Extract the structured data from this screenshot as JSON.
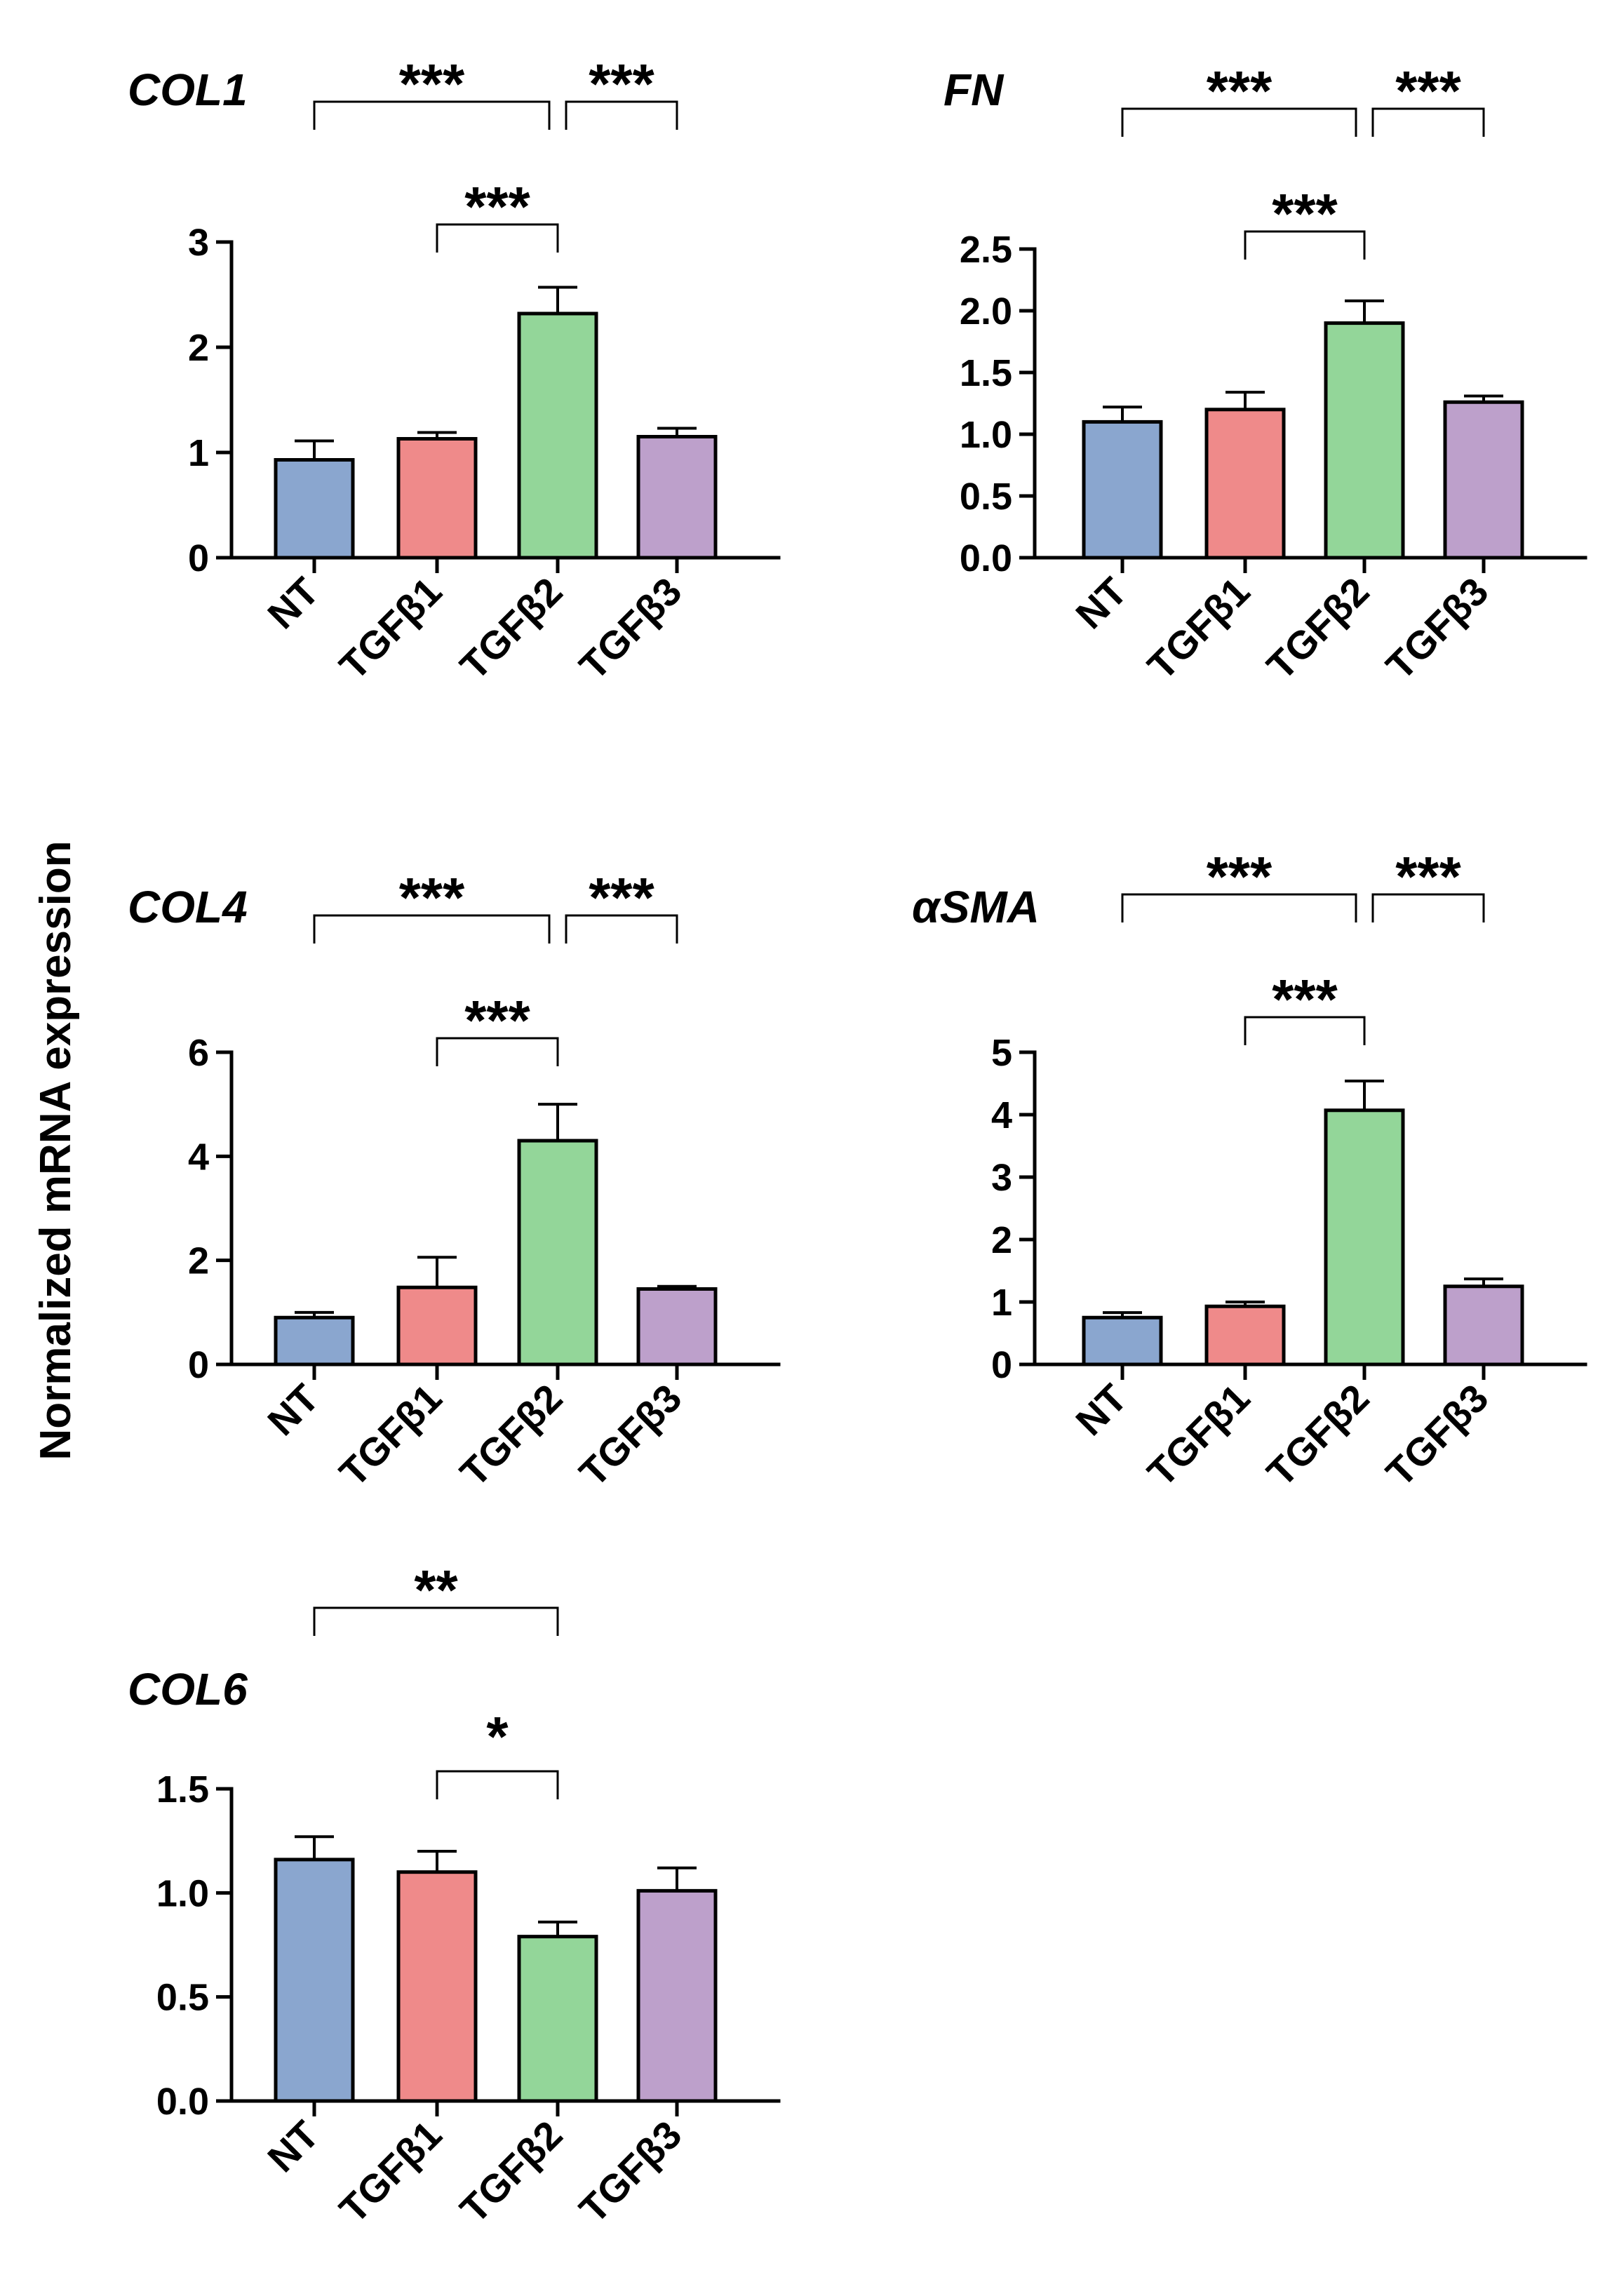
{
  "figure": {
    "ylabel": "Normalized mRNA expression"
  },
  "chart_data": [
    {
      "type": "bar",
      "title": "COL1",
      "categories": [
        "NT",
        "TGFβ1",
        "TGFβ2",
        "TGFβ3"
      ],
      "values": [
        0.93,
        1.13,
        2.32,
        1.15
      ],
      "errors": [
        0.18,
        0.06,
        0.25,
        0.08
      ],
      "ylim": [
        0,
        3
      ],
      "yticks": [
        0,
        1,
        2,
        3
      ],
      "ytick_labels": [
        "0",
        "1",
        "2",
        "3"
      ],
      "colors": [
        "#8aa6cf",
        "#ef8a8a",
        "#93d699",
        "#bda0cb"
      ],
      "significance": [
        {
          "from": 0,
          "to": 2,
          "label": "***",
          "level": 2
        },
        {
          "from": 2,
          "to": 3,
          "label": "***",
          "level": 2
        },
        {
          "from": 1,
          "to": 2,
          "label": "***",
          "level": 1
        }
      ]
    },
    {
      "type": "bar",
      "title": "FN",
      "categories": [
        "NT",
        "TGFβ1",
        "TGFβ2",
        "TGFβ3"
      ],
      "values": [
        1.1,
        1.2,
        1.9,
        1.26
      ],
      "errors": [
        0.12,
        0.14,
        0.18,
        0.05
      ],
      "ylim": [
        0,
        2.5
      ],
      "yticks": [
        0,
        0.5,
        1,
        1.5,
        2,
        2.5
      ],
      "ytick_labels": [
        "0.0",
        "0.5",
        "1.0",
        "1.5",
        "2.0",
        "2.5"
      ],
      "colors": [
        "#8aa6cf",
        "#ef8a8a",
        "#93d699",
        "#bda0cb"
      ],
      "significance": [
        {
          "from": 0,
          "to": 2,
          "label": "***",
          "level": 2
        },
        {
          "from": 2,
          "to": 3,
          "label": "***",
          "level": 2
        },
        {
          "from": 1,
          "to": 2,
          "label": "***",
          "level": 1
        }
      ]
    },
    {
      "type": "bar",
      "title": "COL4",
      "categories": [
        "NT",
        "TGFβ1",
        "TGFβ2",
        "TGFβ3"
      ],
      "values": [
        0.9,
        1.48,
        4.3,
        1.45
      ],
      "errors": [
        0.1,
        0.58,
        0.7,
        0.05
      ],
      "ylim": [
        0,
        6
      ],
      "yticks": [
        0,
        2,
        4,
        6
      ],
      "ytick_labels": [
        "0",
        "2",
        "4",
        "6"
      ],
      "colors": [
        "#8aa6cf",
        "#ef8a8a",
        "#93d699",
        "#bda0cb"
      ],
      "significance": [
        {
          "from": 0,
          "to": 2,
          "label": "***",
          "level": 2
        },
        {
          "from": 2,
          "to": 3,
          "label": "***",
          "level": 2
        },
        {
          "from": 1,
          "to": 2,
          "label": "***",
          "level": 1
        }
      ]
    },
    {
      "type": "bar",
      "title": "αSMA",
      "categories": [
        "NT",
        "TGFβ1",
        "TGFβ2",
        "TGFβ3"
      ],
      "values": [
        0.75,
        0.93,
        4.07,
        1.25
      ],
      "errors": [
        0.08,
        0.07,
        0.47,
        0.12
      ],
      "ylim": [
        0,
        5
      ],
      "yticks": [
        0,
        1,
        2,
        3,
        4,
        5
      ],
      "ytick_labels": [
        "0",
        "1",
        "2",
        "3",
        "4",
        "5"
      ],
      "colors": [
        "#8aa6cf",
        "#ef8a8a",
        "#93d699",
        "#bda0cb"
      ],
      "significance": [
        {
          "from": 0,
          "to": 2,
          "label": "***",
          "level": 2
        },
        {
          "from": 2,
          "to": 3,
          "label": "***",
          "level": 2
        },
        {
          "from": 1,
          "to": 2,
          "label": "***",
          "level": 1
        }
      ]
    },
    {
      "type": "bar",
      "title": "COL6",
      "categories": [
        "NT",
        "TGFβ1",
        "TGFβ2",
        "TGFβ3"
      ],
      "values": [
        1.16,
        1.1,
        0.79,
        1.01
      ],
      "errors": [
        0.11,
        0.1,
        0.07,
        0.11
      ],
      "ylim": [
        0,
        1.5
      ],
      "yticks": [
        0,
        0.5,
        1,
        1.5
      ],
      "ytick_labels": [
        "0.0",
        "0.5",
        "1.0",
        "1.5"
      ],
      "colors": [
        "#8aa6cf",
        "#ef8a8a",
        "#93d699",
        "#bda0cb"
      ],
      "significance": [
        {
          "from": 0,
          "to": 2,
          "label": "**",
          "level": 2
        },
        {
          "from": 1,
          "to": 2,
          "label": "*",
          "level": 1
        }
      ]
    }
  ]
}
